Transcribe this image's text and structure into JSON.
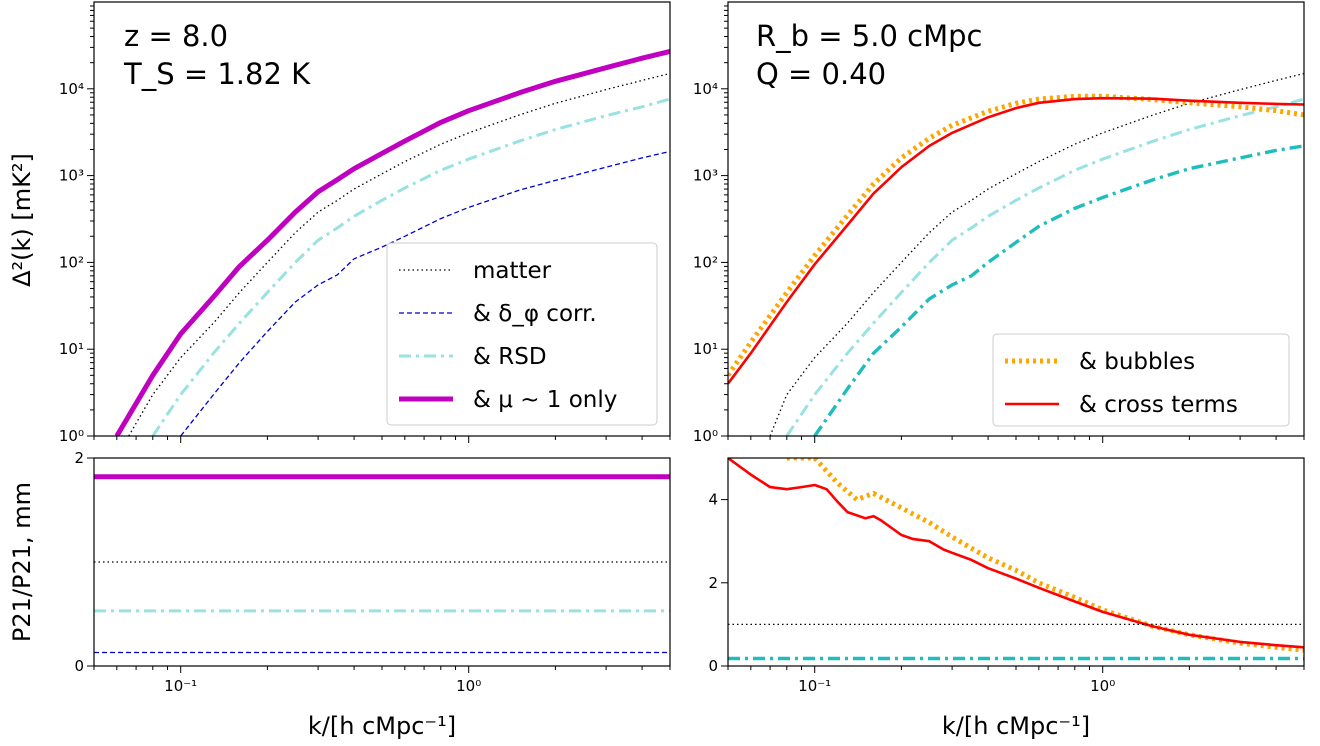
{
  "figure": {
    "xlabel": "k/[h cMpc⁻¹]",
    "top_ylabel": "Δ²(k) [mK²]",
    "bottom_ylabel": "P21/P21, mm"
  },
  "colors": {
    "matter": "#000000",
    "dphi": "#0000cc",
    "rsd": "#99e2e2",
    "mu": "#c000c0",
    "bubbles": "#ffa500",
    "cross": "#ff0000",
    "teal": "#1fbdbd"
  },
  "chart_data": [
    {
      "type": "line",
      "panel": "top-left",
      "annotations": [
        "z = 8.0",
        "T_S = 1.82 K"
      ],
      "x_scale": "log",
      "y_scale": "log",
      "xlim": [
        0.05,
        5.0
      ],
      "ylim": [
        1,
        100000
      ],
      "x_ticks": [
        "10⁻¹",
        "10⁰"
      ],
      "y_ticks": [
        "10⁰",
        "10¹",
        "10²",
        "10³",
        "10⁴"
      ],
      "legend_position": "lower-right",
      "series": [
        {
          "name": "matter",
          "style": "dotted",
          "x": [
            0.066,
            0.08,
            0.1,
            0.13,
            0.16,
            0.2,
            0.25,
            0.3,
            0.35,
            0.4,
            0.5,
            0.6,
            0.8,
            1.0,
            1.5,
            2.0,
            3.0,
            4.0,
            5.0
          ],
          "y": [
            1,
            3,
            8,
            20,
            45,
            100,
            220,
            380,
            520,
            700,
            1050,
            1450,
            2300,
            3100,
            5000,
            6800,
            9800,
            12500,
            15000
          ]
        },
        {
          "name": "& δ_φ corr.",
          "style": "dashed",
          "x": [
            0.1,
            0.13,
            0.16,
            0.2,
            0.25,
            0.3,
            0.35,
            0.4,
            0.5,
            0.6,
            0.8,
            1.0,
            1.5,
            2.0,
            3.0,
            4.0,
            5.0
          ],
          "y": [
            1,
            3,
            7,
            16,
            35,
            55,
            72,
            110,
            150,
            200,
            320,
            430,
            680,
            880,
            1250,
            1600,
            1900
          ]
        },
        {
          "name": "& RSD",
          "style": "dashdot",
          "x": [
            0.08,
            0.1,
            0.13,
            0.16,
            0.2,
            0.25,
            0.3,
            0.35,
            0.4,
            0.5,
            0.6,
            0.8,
            1.0,
            1.5,
            2.0,
            3.0,
            4.0,
            5.0
          ],
          "y": [
            1,
            3,
            9,
            20,
            45,
            100,
            180,
            250,
            340,
            520,
            720,
            1150,
            1550,
            2500,
            3400,
            4900,
            6200,
            7600
          ]
        },
        {
          "name": "& μ ~ 1 only",
          "style": "solid-thick",
          "x": [
            0.06,
            0.08,
            0.1,
            0.13,
            0.16,
            0.2,
            0.25,
            0.3,
            0.35,
            0.4,
            0.5,
            0.6,
            0.8,
            1.0,
            1.5,
            2.0,
            3.0,
            4.0,
            5.0
          ],
          "y": [
            1,
            5,
            15,
            40,
            90,
            180,
            380,
            650,
            900,
            1200,
            1800,
            2500,
            4100,
            5600,
            9000,
            12200,
            17500,
            22500,
            27000
          ]
        }
      ]
    },
    {
      "type": "line",
      "panel": "top-right",
      "annotations": [
        "R_b = 5.0 cMpc",
        "Q = 0.40"
      ],
      "x_scale": "log",
      "y_scale": "log",
      "xlim": [
        0.05,
        5.0
      ],
      "ylim": [
        1,
        100000
      ],
      "x_ticks": [
        "10⁻¹",
        "10⁰"
      ],
      "y_ticks": [
        "10⁰",
        "10¹",
        "10²",
        "10³",
        "10⁴"
      ],
      "legend_position": "lower-right",
      "series": [
        {
          "name": "matter",
          "style": "dotted",
          "x": [
            0.07,
            0.08,
            0.1,
            0.13,
            0.16,
            0.2,
            0.25,
            0.3,
            0.35,
            0.4,
            0.5,
            0.6,
            0.8,
            1.0,
            1.5,
            2.0,
            3.0,
            4.0,
            5.0
          ],
          "y": [
            1,
            3,
            8,
            20,
            45,
            100,
            220,
            380,
            520,
            700,
            1050,
            1450,
            2300,
            3100,
            5000,
            6800,
            9800,
            12500,
            15000
          ]
        },
        {
          "name": "RSD",
          "style": "dashdot",
          "x": [
            0.08,
            0.1,
            0.13,
            0.16,
            0.2,
            0.25,
            0.3,
            0.35,
            0.4,
            0.5,
            0.6,
            0.8,
            1.0,
            1.5,
            2.0,
            3.0,
            4.0,
            5.0
          ],
          "y": [
            1,
            3,
            9,
            20,
            45,
            100,
            180,
            250,
            340,
            520,
            720,
            1150,
            1550,
            2500,
            3400,
            4900,
            6200,
            7600
          ]
        },
        {
          "name": "teal",
          "style": "dashdot-thick",
          "x": [
            0.1,
            0.13,
            0.16,
            0.2,
            0.25,
            0.3,
            0.35,
            0.4,
            0.5,
            0.6,
            0.8,
            1.0,
            1.5,
            2.0,
            3.0,
            4.0,
            5.0
          ],
          "y": [
            1,
            3.5,
            9,
            18,
            38,
            55,
            70,
            100,
            170,
            260,
            420,
            560,
            900,
            1200,
            1600,
            1950,
            2200
          ]
        },
        {
          "name": "& bubbles",
          "style": "dotted-thick",
          "x": [
            0.05,
            0.06,
            0.08,
            0.1,
            0.13,
            0.16,
            0.2,
            0.25,
            0.3,
            0.4,
            0.5,
            0.6,
            0.8,
            1.0,
            1.5,
            2.0,
            3.0,
            4.0,
            5.0
          ],
          "y": [
            5,
            12,
            45,
            120,
            350,
            800,
            1600,
            2700,
            3800,
            5500,
            6800,
            7600,
            8200,
            8200,
            7500,
            6900,
            6200,
            5600,
            5000
          ]
        },
        {
          "name": "& cross terms",
          "style": "solid",
          "x": [
            0.05,
            0.06,
            0.08,
            0.1,
            0.13,
            0.16,
            0.2,
            0.25,
            0.3,
            0.4,
            0.5,
            0.6,
            0.8,
            1.0,
            1.5,
            2.0,
            3.0,
            4.0,
            5.0
          ],
          "y": [
            4,
            9,
            35,
            95,
            270,
            620,
            1250,
            2200,
            3100,
            4700,
            6000,
            6900,
            7600,
            7800,
            7700,
            7300,
            6900,
            6700,
            6600
          ]
        }
      ]
    },
    {
      "type": "line",
      "panel": "bottom-left",
      "x_scale": "log",
      "xlim": [
        0.05,
        5.0
      ],
      "ylim": [
        0,
        2
      ],
      "y_ticks": [
        "0",
        "2"
      ],
      "series": [
        {
          "name": "& μ ~ 1 only",
          "style": "solid-thick",
          "x": [
            0.05,
            5.0
          ],
          "y": [
            1.82,
            1.82
          ]
        },
        {
          "name": "matter",
          "style": "dotted",
          "x": [
            0.05,
            5.0
          ],
          "y": [
            1.0,
            1.0
          ]
        },
        {
          "name": "& RSD",
          "style": "dashdot",
          "x": [
            0.05,
            5.0
          ],
          "y": [
            0.53,
            0.53
          ]
        },
        {
          "name": "& δ_φ corr.",
          "style": "dashed",
          "x": [
            0.05,
            5.0
          ],
          "y": [
            0.13,
            0.13
          ]
        }
      ]
    },
    {
      "type": "line",
      "panel": "bottom-right",
      "x_scale": "log",
      "xlim": [
        0.05,
        5.0
      ],
      "ylim": [
        0,
        5
      ],
      "y_ticks": [
        "0",
        "2",
        "4"
      ],
      "series": [
        {
          "name": "& bubbles",
          "style": "dotted-thick",
          "x": [
            0.08,
            0.1,
            0.12,
            0.14,
            0.16,
            0.2,
            0.25,
            0.3,
            0.4,
            0.5,
            0.6,
            0.8,
            1.0,
            1.5,
            2.0,
            3.0,
            4.0,
            5.0
          ],
          "y": [
            5.0,
            5.0,
            4.4,
            4.0,
            4.15,
            3.8,
            3.45,
            3.1,
            2.6,
            2.3,
            2.0,
            1.65,
            1.35,
            0.95,
            0.75,
            0.55,
            0.45,
            0.38
          ]
        },
        {
          "name": "& cross terms",
          "style": "solid",
          "x": [
            0.05,
            0.06,
            0.07,
            0.08,
            0.09,
            0.1,
            0.11,
            0.12,
            0.13,
            0.15,
            0.16,
            0.17,
            0.2,
            0.22,
            0.25,
            0.28,
            0.3,
            0.35,
            0.4,
            0.5,
            0.6,
            0.8,
            1.0,
            1.5,
            2.0,
            3.0,
            4.0,
            5.0
          ],
          "y": [
            5.0,
            4.6,
            4.3,
            4.25,
            4.3,
            4.35,
            4.25,
            3.95,
            3.7,
            3.55,
            3.6,
            3.5,
            3.15,
            3.05,
            3.0,
            2.8,
            2.72,
            2.55,
            2.35,
            2.1,
            1.88,
            1.55,
            1.3,
            0.95,
            0.75,
            0.58,
            0.5,
            0.45
          ]
        },
        {
          "name": "matter",
          "style": "dotted",
          "x": [
            0.05,
            5.0
          ],
          "y": [
            1.0,
            1.0
          ]
        },
        {
          "name": "teal",
          "style": "dashdot-thick",
          "x": [
            0.05,
            5.0
          ],
          "y": [
            0.18,
            0.18
          ]
        }
      ]
    }
  ]
}
